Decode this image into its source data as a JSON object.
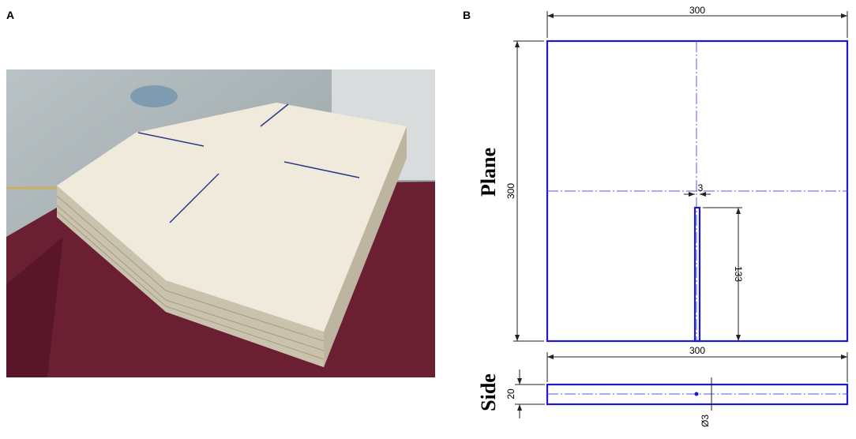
{
  "panels": [
    {
      "label": "A"
    },
    {
      "label": "B",
      "plane": {
        "title": "Plane",
        "width": 300,
        "height": 300,
        "slot_width": 3,
        "slot_length": 133
      },
      "side": {
        "title": "Side",
        "width": 300,
        "thickness": 20,
        "hole": "Ø3"
      }
    }
  ]
}
